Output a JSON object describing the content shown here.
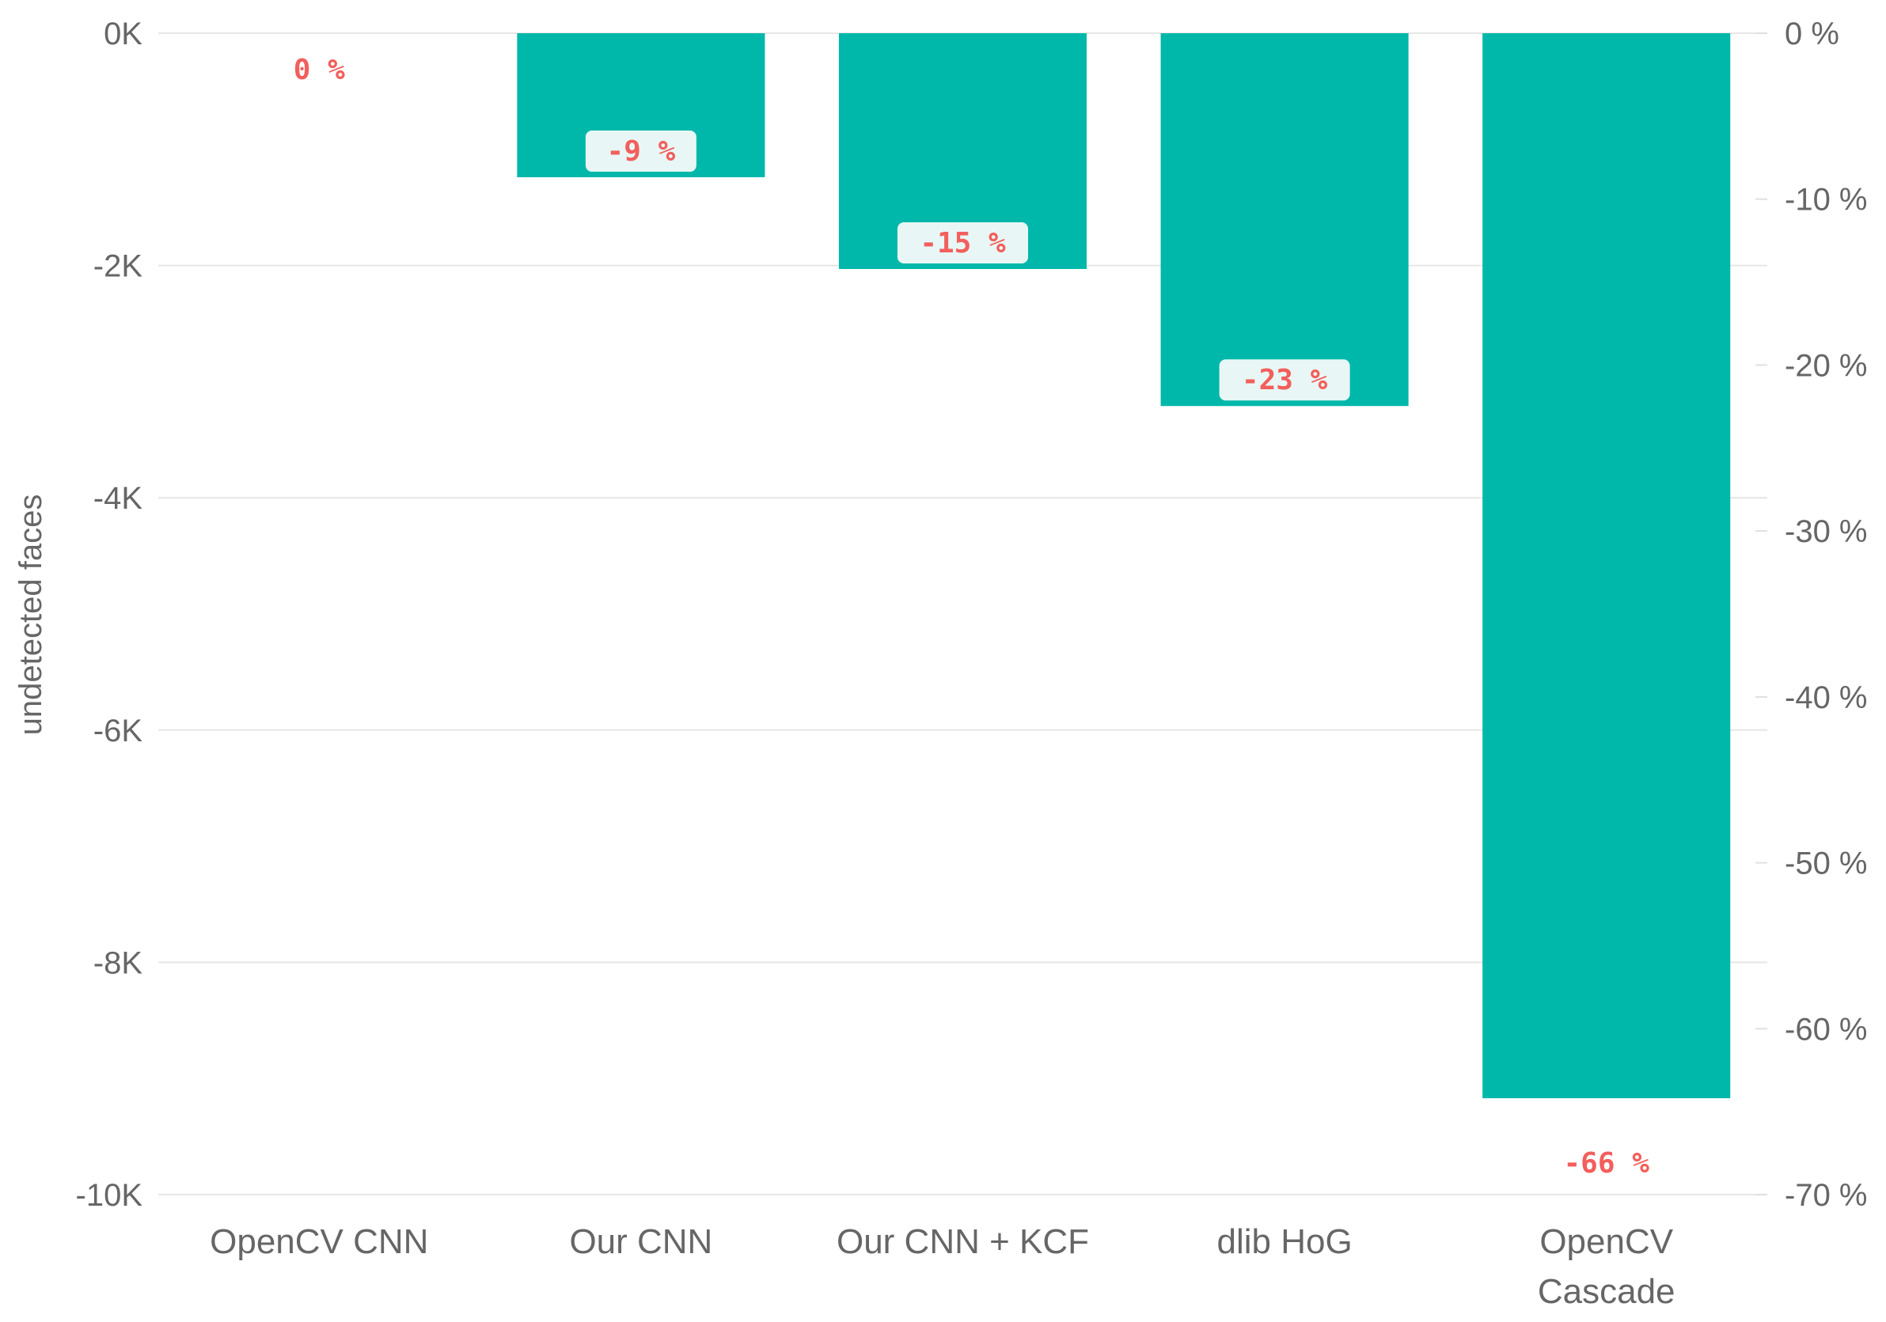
{
  "chart_data": {
    "type": "bar",
    "categories": [
      "OpenCV CNN",
      "Our CNN",
      "Our CNN + KCF",
      "dlib HoG",
      "OpenCV Cascade"
    ],
    "category_lines": [
      [
        "OpenCV CNN"
      ],
      [
        "Our CNN"
      ],
      [
        "Our CNN + KCF"
      ],
      [
        "dlib HoG"
      ],
      [
        "OpenCV",
        "Cascade"
      ]
    ],
    "values": [
      0,
      -1240,
      -2030,
      -3210,
      -9170
    ],
    "data_labels": [
      "0 %",
      "-9 %",
      "-15 %",
      "-23 %",
      "-66 %"
    ],
    "ylabel": "undetected faces",
    "ylim": [
      -10000,
      0
    ],
    "y_ticks": [
      0,
      -2000,
      -4000,
      -6000,
      -8000,
      -10000
    ],
    "y_tick_labels": [
      "0K",
      "-2K",
      "-4K",
      "-6K",
      "-8K",
      "-10K"
    ],
    "y2lim": [
      -70,
      0
    ],
    "y2_ticks": [
      0,
      -10,
      -20,
      -30,
      -40,
      -50,
      -60,
      -70
    ],
    "y2_tick_labels": [
      "0 %",
      "-10 %",
      "-20 %",
      "-30 %",
      "-40 %",
      "-50 %",
      "-60 %",
      "-70 %"
    ],
    "grid": true,
    "colors": {
      "bar": "#00b8aa",
      "label_text": "#f25f5c",
      "label_bg": "#e8f7f5",
      "grid": "#e6e6e6",
      "axis_text": "#666666"
    }
  }
}
